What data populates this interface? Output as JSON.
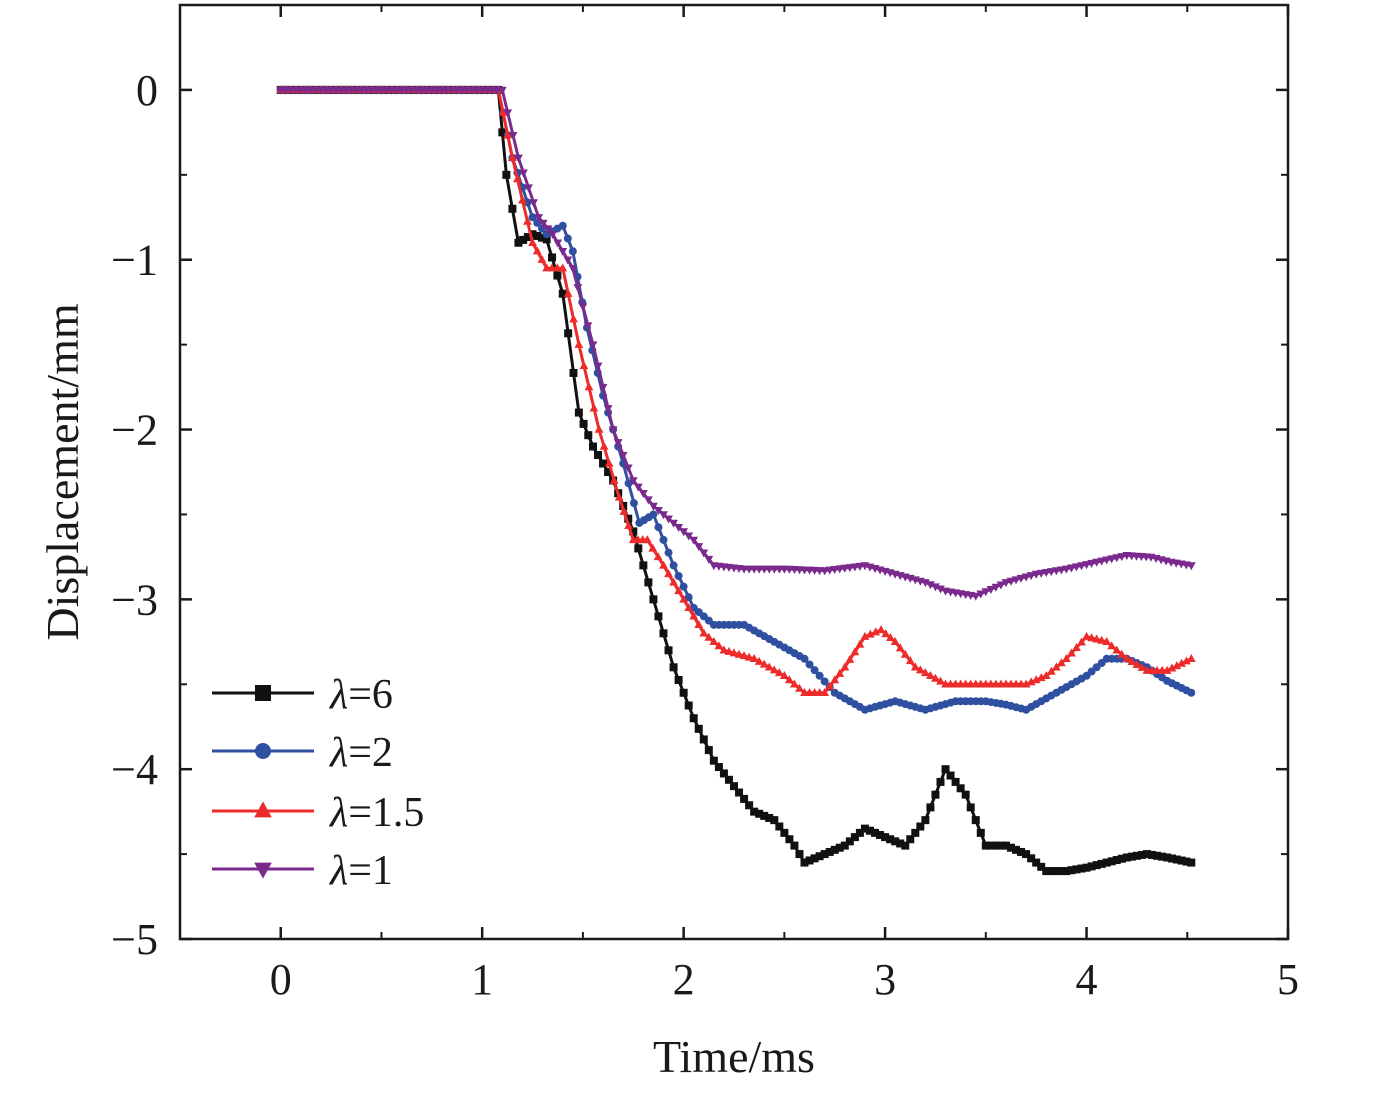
{
  "chart_data": {
    "type": "line",
    "title": "",
    "xlabel": "Time/ms",
    "ylabel": "Displacement/mm",
    "xlim": [
      -0.5,
      5
    ],
    "ylim": [
      -5,
      0.5
    ],
    "xticks": [
      0,
      1,
      2,
      3,
      4,
      5
    ],
    "yticks": [
      0,
      -1,
      -2,
      -3,
      -4,
      -5
    ],
    "xtick_labels": [
      "0",
      "1",
      "2",
      "3",
      "4",
      "5"
    ],
    "ytick_labels": [
      "0",
      "−1",
      "−2",
      "−3",
      "−4",
      "−5"
    ],
    "grid": false,
    "legend_position": "bottom-left",
    "series": [
      {
        "name": "λ=6",
        "legend_symbol": "λ",
        "legend_value": "=6",
        "color": "#111111",
        "marker": "square",
        "points": [
          [
            0,
            0
          ],
          [
            1.08,
            0
          ],
          [
            1.12,
            -0.5
          ],
          [
            1.18,
            -0.9
          ],
          [
            1.25,
            -0.85
          ],
          [
            1.32,
            -0.88
          ],
          [
            1.4,
            -1.2
          ],
          [
            1.48,
            -1.9
          ],
          [
            1.55,
            -2.1
          ],
          [
            1.65,
            -2.3
          ],
          [
            1.75,
            -2.6
          ],
          [
            1.85,
            -3.0
          ],
          [
            1.95,
            -3.4
          ],
          [
            2.05,
            -3.7
          ],
          [
            2.15,
            -3.95
          ],
          [
            2.25,
            -4.1
          ],
          [
            2.35,
            -4.25
          ],
          [
            2.45,
            -4.3
          ],
          [
            2.55,
            -4.45
          ],
          [
            2.6,
            -4.55
          ],
          [
            2.7,
            -4.5
          ],
          [
            2.8,
            -4.45
          ],
          [
            2.9,
            -4.35
          ],
          [
            3.0,
            -4.4
          ],
          [
            3.1,
            -4.45
          ],
          [
            3.2,
            -4.3
          ],
          [
            3.3,
            -4.0
          ],
          [
            3.4,
            -4.15
          ],
          [
            3.5,
            -4.45
          ],
          [
            3.6,
            -4.45
          ],
          [
            3.7,
            -4.5
          ],
          [
            3.8,
            -4.6
          ],
          [
            3.9,
            -4.6
          ],
          [
            4.0,
            -4.58
          ],
          [
            4.1,
            -4.55
          ],
          [
            4.2,
            -4.52
          ],
          [
            4.3,
            -4.5
          ],
          [
            4.4,
            -4.52
          ],
          [
            4.52,
            -4.55
          ]
        ]
      },
      {
        "name": "λ=2",
        "legend_symbol": "λ",
        "legend_value": "=2",
        "color": "#2f4fa0",
        "marker": "circle",
        "points": [
          [
            0,
            0
          ],
          [
            1.08,
            0
          ],
          [
            1.15,
            -0.4
          ],
          [
            1.25,
            -0.75
          ],
          [
            1.32,
            -0.85
          ],
          [
            1.4,
            -0.8
          ],
          [
            1.45,
            -0.95
          ],
          [
            1.52,
            -1.4
          ],
          [
            1.6,
            -1.8
          ],
          [
            1.7,
            -2.2
          ],
          [
            1.78,
            -2.55
          ],
          [
            1.85,
            -2.5
          ],
          [
            1.95,
            -2.8
          ],
          [
            2.05,
            -3.05
          ],
          [
            2.15,
            -3.15
          ],
          [
            2.3,
            -3.15
          ],
          [
            2.45,
            -3.25
          ],
          [
            2.6,
            -3.35
          ],
          [
            2.75,
            -3.55
          ],
          [
            2.9,
            -3.65
          ],
          [
            3.05,
            -3.6
          ],
          [
            3.2,
            -3.65
          ],
          [
            3.35,
            -3.6
          ],
          [
            3.5,
            -3.6
          ],
          [
            3.6,
            -3.62
          ],
          [
            3.7,
            -3.65
          ],
          [
            3.85,
            -3.55
          ],
          [
            4.0,
            -3.45
          ],
          [
            4.1,
            -3.35
          ],
          [
            4.2,
            -3.35
          ],
          [
            4.3,
            -3.4
          ],
          [
            4.4,
            -3.48
          ],
          [
            4.52,
            -3.55
          ]
        ]
      },
      {
        "name": "λ=1.5",
        "legend_symbol": "λ",
        "legend_value": "=1.5",
        "color": "#ee2b2b",
        "marker": "triangle-up",
        "points": [
          [
            0,
            0
          ],
          [
            1.08,
            0
          ],
          [
            1.15,
            -0.4
          ],
          [
            1.25,
            -0.9
          ],
          [
            1.32,
            -1.05
          ],
          [
            1.4,
            -1.05
          ],
          [
            1.48,
            -1.5
          ],
          [
            1.58,
            -2.0
          ],
          [
            1.68,
            -2.4
          ],
          [
            1.75,
            -2.65
          ],
          [
            1.82,
            -2.65
          ],
          [
            1.9,
            -2.8
          ],
          [
            2.0,
            -3.0
          ],
          [
            2.1,
            -3.2
          ],
          [
            2.2,
            -3.3
          ],
          [
            2.35,
            -3.35
          ],
          [
            2.5,
            -3.45
          ],
          [
            2.6,
            -3.55
          ],
          [
            2.7,
            -3.55
          ],
          [
            2.8,
            -3.4
          ],
          [
            2.9,
            -3.22
          ],
          [
            2.98,
            -3.18
          ],
          [
            3.05,
            -3.25
          ],
          [
            3.15,
            -3.4
          ],
          [
            3.3,
            -3.5
          ],
          [
            3.45,
            -3.5
          ],
          [
            3.55,
            -3.5
          ],
          [
            3.7,
            -3.5
          ],
          [
            3.8,
            -3.45
          ],
          [
            3.9,
            -3.35
          ],
          [
            4.0,
            -3.22
          ],
          [
            4.1,
            -3.25
          ],
          [
            4.2,
            -3.35
          ],
          [
            4.3,
            -3.42
          ],
          [
            4.4,
            -3.42
          ],
          [
            4.52,
            -3.35
          ]
        ]
      },
      {
        "name": "λ=1",
        "legend_symbol": "λ",
        "legend_value": "=1",
        "color": "#7a2a8c",
        "marker": "triangle-down",
        "points": [
          [
            0,
            0
          ],
          [
            1.1,
            0
          ],
          [
            1.18,
            -0.4
          ],
          [
            1.28,
            -0.75
          ],
          [
            1.35,
            -0.85
          ],
          [
            1.45,
            -1.05
          ],
          [
            1.55,
            -1.5
          ],
          [
            1.65,
            -2.0
          ],
          [
            1.75,
            -2.3
          ],
          [
            1.85,
            -2.45
          ],
          [
            1.95,
            -2.55
          ],
          [
            2.05,
            -2.65
          ],
          [
            2.15,
            -2.8
          ],
          [
            2.3,
            -2.82
          ],
          [
            2.5,
            -2.82
          ],
          [
            2.7,
            -2.83
          ],
          [
            2.9,
            -2.8
          ],
          [
            3.05,
            -2.85
          ],
          [
            3.2,
            -2.9
          ],
          [
            3.3,
            -2.95
          ],
          [
            3.45,
            -2.98
          ],
          [
            3.6,
            -2.9
          ],
          [
            3.75,
            -2.85
          ],
          [
            3.9,
            -2.82
          ],
          [
            4.05,
            -2.78
          ],
          [
            4.2,
            -2.74
          ],
          [
            4.32,
            -2.75
          ],
          [
            4.42,
            -2.78
          ],
          [
            4.52,
            -2.8
          ]
        ]
      }
    ]
  }
}
